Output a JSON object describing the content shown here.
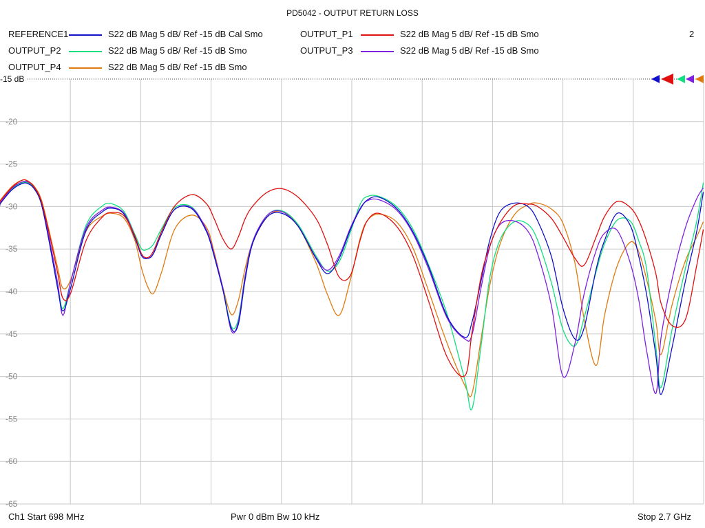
{
  "chart_data": {
    "type": "line",
    "title": "PD5042 - OUTPUT RETURN LOSS",
    "xlabel": "",
    "ylabel": "",
    "x_start_mhz": 698,
    "x_stop_mhz": 2700,
    "ylim": [
      -65,
      -15
    ],
    "yticks": [
      "-15 dB",
      "-20",
      "-25",
      "-30",
      "-35",
      "-40",
      "-45",
      "-50",
      "-55",
      "-60",
      "-65"
    ],
    "ytick_values": [
      -15,
      -20,
      -25,
      -30,
      -35,
      -40,
      -45,
      -50,
      -55,
      -60,
      -65
    ],
    "grid": true,
    "legend_placement": "top",
    "channel_number": "2",
    "series": [
      {
        "name": "REFERENCE1",
        "desc": "S22  dB Mag  5 dB/ Ref -15 dB  Cal Smo",
        "color": "#1010c8",
        "x": [
          698,
          700,
          733,
          761,
          777,
          795,
          815,
          836,
          862,
          877,
          899,
          943,
          990,
          1018,
          1051,
          1081,
          1101,
          1119,
          1135,
          1158,
          1196,
          1245,
          1286,
          1307,
          1332,
          1356,
          1376,
          1396,
          1418,
          1459,
          1500,
          1546,
          1597,
          1630,
          1663,
          1695,
          1723,
          1744,
          1776,
          1826,
          1872,
          1918,
          1971,
          2021,
          2041,
          2067,
          2092,
          2121,
          2161,
          2200,
          2228,
          2267,
          2300,
          2334,
          2360,
          2394,
          2419,
          2454,
          2491,
          2515,
          2538,
          2564,
          2579,
          2610,
          2648,
          2680,
          2699
        ],
        "y": [
          -29.9,
          -29.6,
          -28.0,
          -27.3,
          -27.3,
          -27.9,
          -29.6,
          -33.7,
          -39.6,
          -42.3,
          -39.6,
          -32.8,
          -30.6,
          -30.2,
          -30.9,
          -33.6,
          -35.8,
          -36.1,
          -35.5,
          -33.2,
          -30.3,
          -30.3,
          -33.0,
          -35.8,
          -39.8,
          -44.3,
          -43.9,
          -38.5,
          -34.2,
          -31.2,
          -30.8,
          -32.3,
          -36.1,
          -37.9,
          -36.1,
          -32.7,
          -30.3,
          -29.2,
          -28.9,
          -30.2,
          -32.9,
          -37.1,
          -43.0,
          -45.4,
          -43.6,
          -38.7,
          -33.9,
          -30.6,
          -29.6,
          -30.0,
          -31.7,
          -35.9,
          -42.0,
          -45.6,
          -44.3,
          -37.4,
          -33.9,
          -30.8,
          -32.2,
          -35.8,
          -40.4,
          -47.5,
          -52.1,
          -46.6,
          -38.8,
          -33.0,
          -28.3
        ]
      },
      {
        "name": "OUTPUT_P1",
        "desc": "S22  dB Mag  5 dB/ Ref -15 dB  Smo",
        "color": "#e01010",
        "x": [
          698,
          700,
          733,
          761,
          777,
          795,
          815,
          836,
          862,
          877,
          899,
          943,
          990,
          1018,
          1051,
          1081,
          1101,
          1119,
          1135,
          1158,
          1196,
          1245,
          1286,
          1307,
          1332,
          1356,
          1376,
          1396,
          1418,
          1459,
          1500,
          1546,
          1597,
          1630,
          1663,
          1695,
          1723,
          1744,
          1776,
          1826,
          1872,
          1918,
          1971,
          2021,
          2041,
          2067,
          2092,
          2121,
          2161,
          2200,
          2228,
          2267,
          2300,
          2334,
          2360,
          2394,
          2419,
          2454,
          2491,
          2515,
          2538,
          2564,
          2579,
          2610,
          2648,
          2680,
          2699
        ],
        "y": [
          -29.6,
          -29.3,
          -27.7,
          -26.9,
          -27.0,
          -27.7,
          -29.3,
          -32.8,
          -37.8,
          -40.8,
          -40.2,
          -34.0,
          -31.2,
          -30.7,
          -31.1,
          -33.4,
          -35.6,
          -36.0,
          -35.2,
          -32.9,
          -29.9,
          -28.6,
          -29.7,
          -31.4,
          -33.8,
          -35.0,
          -33.6,
          -31.4,
          -29.9,
          -28.3,
          -27.9,
          -28.9,
          -31.4,
          -34.5,
          -38.3,
          -38.1,
          -33.9,
          -31.6,
          -30.8,
          -32.3,
          -35.7,
          -41.2,
          -47.8,
          -49.9,
          -44.8,
          -38.2,
          -34.6,
          -31.9,
          -29.9,
          -29.7,
          -30.0,
          -31.4,
          -33.6,
          -36.1,
          -36.9,
          -33.6,
          -31.1,
          -29.4,
          -30.1,
          -31.6,
          -34.1,
          -37.9,
          -41.4,
          -44.0,
          -43.3,
          -37.0,
          -32.7
        ]
      },
      {
        "name": "OUTPUT_P2",
        "desc": "S22  dB Mag  5 dB/ Ref -15 dB  Smo",
        "color": "#10e080",
        "x": [
          698,
          700,
          733,
          761,
          777,
          795,
          815,
          836,
          862,
          877,
          899,
          943,
          990,
          1018,
          1051,
          1081,
          1101,
          1119,
          1135,
          1158,
          1196,
          1245,
          1286,
          1307,
          1332,
          1356,
          1376,
          1396,
          1418,
          1459,
          1500,
          1546,
          1597,
          1630,
          1663,
          1695,
          1723,
          1744,
          1776,
          1826,
          1872,
          1918,
          1971,
          2021,
          2041,
          2067,
          2092,
          2121,
          2161,
          2200,
          2228,
          2267,
          2300,
          2334,
          2360,
          2394,
          2419,
          2454,
          2491,
          2515,
          2538,
          2564,
          2579,
          2610,
          2648,
          2680,
          2699
        ],
        "y": [
          -29.8,
          -29.5,
          -27.9,
          -27.2,
          -27.2,
          -27.8,
          -29.5,
          -33.5,
          -39.2,
          -42.0,
          -38.9,
          -32.2,
          -29.9,
          -29.7,
          -30.6,
          -33.2,
          -35.0,
          -35.0,
          -34.4,
          -32.6,
          -30.1,
          -30.1,
          -32.9,
          -35.7,
          -39.6,
          -44.1,
          -43.3,
          -38.0,
          -34.0,
          -31.0,
          -30.5,
          -32.1,
          -35.8,
          -37.6,
          -36.5,
          -33.0,
          -29.7,
          -28.8,
          -28.8,
          -30.0,
          -32.6,
          -36.9,
          -42.8,
          -50.5,
          -53.8,
          -46.3,
          -38.3,
          -33.9,
          -31.8,
          -32.1,
          -34.0,
          -39.0,
          -44.5,
          -46.4,
          -43.1,
          -37.7,
          -34.3,
          -31.6,
          -31.7,
          -34.0,
          -37.4,
          -46.5,
          -51.3,
          -44.5,
          -37.3,
          -31.8,
          -27.2
        ]
      },
      {
        "name": "OUTPUT_P3",
        "desc": "S22  dB Mag  5 dB/ Ref -15 dB  Smo",
        "color": "#8020e0",
        "x": [
          698,
          700,
          733,
          761,
          777,
          795,
          815,
          836,
          862,
          877,
          899,
          943,
          990,
          1018,
          1051,
          1081,
          1101,
          1119,
          1135,
          1158,
          1196,
          1245,
          1286,
          1307,
          1332,
          1356,
          1376,
          1396,
          1418,
          1459,
          1500,
          1546,
          1597,
          1630,
          1663,
          1695,
          1723,
          1744,
          1776,
          1826,
          1872,
          1918,
          1971,
          2021,
          2041,
          2067,
          2092,
          2121,
          2161,
          2200,
          2228,
          2267,
          2300,
          2334,
          2360,
          2394,
          2419,
          2454,
          2491,
          2515,
          2538,
          2564,
          2579,
          2610,
          2648,
          2680,
          2699
        ],
        "y": [
          -29.8,
          -29.5,
          -27.8,
          -27.1,
          -27.1,
          -27.7,
          -29.4,
          -33.3,
          -39.0,
          -42.8,
          -38.9,
          -32.5,
          -30.4,
          -30.1,
          -30.8,
          -33.4,
          -35.6,
          -36.1,
          -35.5,
          -33.2,
          -30.3,
          -30.2,
          -32.8,
          -35.6,
          -39.6,
          -44.6,
          -43.6,
          -38.1,
          -34.0,
          -31.0,
          -30.6,
          -32.3,
          -36.0,
          -37.5,
          -35.8,
          -32.5,
          -30.2,
          -29.3,
          -29.2,
          -30.4,
          -33.1,
          -37.4,
          -43.2,
          -45.6,
          -45.1,
          -39.5,
          -34.7,
          -32.1,
          -31.7,
          -32.9,
          -35.6,
          -41.7,
          -50.0,
          -46.1,
          -40.3,
          -35.2,
          -33.1,
          -32.8,
          -36.6,
          -40.9,
          -47.0,
          -52.0,
          -45.4,
          -38.6,
          -32.5,
          -29.1,
          -27.8
        ]
      },
      {
        "name": "OUTPUT_P4",
        "desc": "S22  dB Mag  5 dB/ Ref -15 dB  Smo",
        "color": "#e07a10",
        "x": [
          698,
          700,
          733,
          761,
          777,
          795,
          815,
          836,
          862,
          877,
          899,
          943,
          990,
          1018,
          1051,
          1081,
          1101,
          1119,
          1135,
          1158,
          1196,
          1245,
          1286,
          1307,
          1332,
          1356,
          1376,
          1396,
          1418,
          1459,
          1500,
          1546,
          1597,
          1630,
          1663,
          1695,
          1723,
          1744,
          1776,
          1826,
          1872,
          1918,
          1971,
          2021,
          2041,
          2067,
          2092,
          2121,
          2161,
          2200,
          2228,
          2267,
          2300,
          2334,
          2360,
          2394,
          2419,
          2454,
          2491,
          2515,
          2538,
          2564,
          2579,
          2610,
          2648,
          2680,
          2699
        ],
        "y": [
          -29.5,
          -29.2,
          -27.6,
          -26.9,
          -27.0,
          -27.6,
          -29.1,
          -32.5,
          -37.2,
          -39.6,
          -38.6,
          -32.9,
          -31.1,
          -30.8,
          -31.4,
          -33.9,
          -37.3,
          -39.5,
          -40.2,
          -37.7,
          -32.6,
          -31.0,
          -32.5,
          -35.3,
          -39.5,
          -42.7,
          -41.1,
          -37.2,
          -34.1,
          -31.2,
          -30.6,
          -32.3,
          -36.6,
          -40.4,
          -42.8,
          -38.6,
          -33.7,
          -31.6,
          -30.9,
          -31.8,
          -34.8,
          -40.0,
          -46.2,
          -51.1,
          -52.0,
          -45.5,
          -39.2,
          -34.4,
          -31.0,
          -29.8,
          -29.6,
          -30.3,
          -32.0,
          -36.7,
          -43.2,
          -48.7,
          -42.6,
          -37.0,
          -34.2,
          -35.3,
          -38.6,
          -43.5,
          -47.4,
          -41.6,
          -36.4,
          -33.6,
          -31.8
        ]
      }
    ]
  },
  "footer": {
    "start": "Ch1  Start  698 MHz",
    "mid": "Pwr  0 dBm  Bw  10 kHz",
    "stop": "Stop  2.7 GHz"
  }
}
